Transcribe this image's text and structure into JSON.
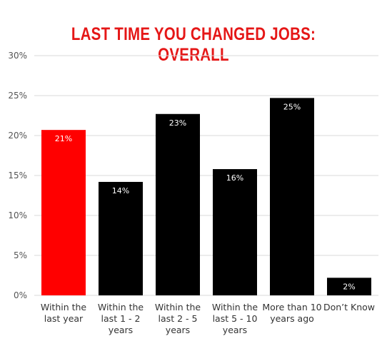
{
  "colors": {
    "highlight": "#ff0000",
    "bar": "#000000",
    "grid": "#d9d9d9",
    "title": "#e51717"
  },
  "chart_data": {
    "type": "bar",
    "title": "LAST TIME YOU CHANGED JOBS: OVERALL",
    "categories": [
      [
        "Within the",
        "last year"
      ],
      [
        "Within the",
        "last 1 - 2",
        "years"
      ],
      [
        "Within the",
        "last 2 - 5",
        "years"
      ],
      [
        "Within the",
        "last 5 - 10",
        "years"
      ],
      [
        "More than 10",
        "years ago"
      ],
      [
        "Don’t Know"
      ]
    ],
    "values": [
      20.7,
      14.2,
      22.7,
      15.8,
      24.7,
      2.2
    ],
    "data_labels": [
      "21%",
      "14%",
      "23%",
      "16%",
      "25%",
      "2%"
    ],
    "highlighted_index": 0,
    "ylim": [
      0,
      30
    ],
    "yticks": [
      "0%",
      "5%",
      "10%",
      "15%",
      "20%",
      "25%",
      "30%"
    ],
    "ytick_values": [
      0,
      5,
      10,
      15,
      20,
      25,
      30
    ],
    "grid": true,
    "legend": "none"
  }
}
